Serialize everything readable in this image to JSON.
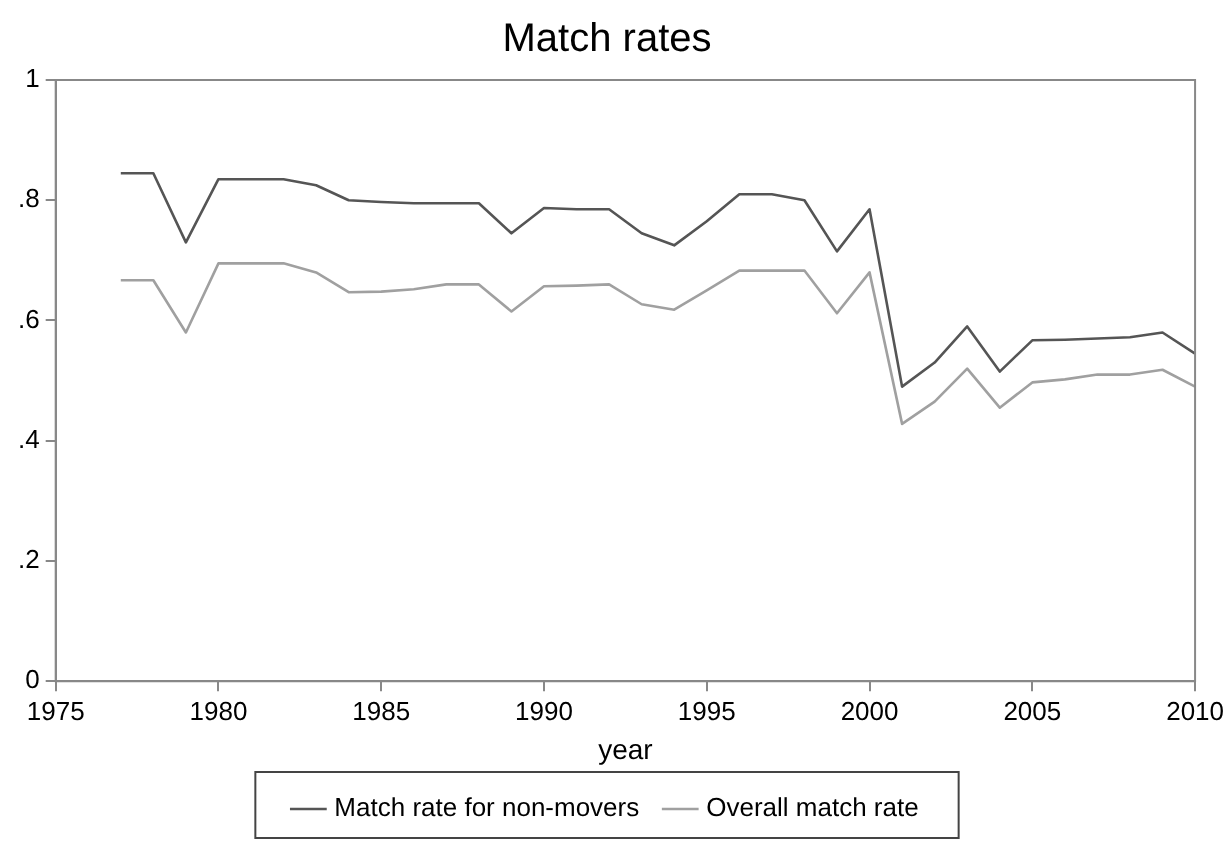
{
  "chart_data": {
    "type": "line",
    "title": "Match rates",
    "xlabel": "year",
    "x": [
      1977,
      1978,
      1979,
      1980,
      1981,
      1982,
      1983,
      1984,
      1985,
      1986,
      1987,
      1988,
      1989,
      1990,
      1991,
      1992,
      1993,
      1994,
      1995,
      1996,
      1997,
      1998,
      1999,
      2000,
      2001,
      2002,
      2003,
      2004,
      2005,
      2006,
      2007,
      2008,
      2009,
      2010
    ],
    "series": [
      {
        "name": "Match rate for non-movers",
        "color": "#555555",
        "values": [
          0.845,
          0.845,
          0.73,
          0.835,
          0.835,
          0.835,
          0.825,
          0.8,
          0.797,
          0.795,
          0.795,
          0.795,
          0.745,
          0.787,
          0.785,
          0.785,
          0.745,
          0.725,
          0.765,
          0.81,
          0.81,
          0.8,
          0.715,
          0.785,
          0.49,
          0.53,
          0.59,
          0.515,
          0.567,
          0.568,
          0.57,
          0.572,
          0.58,
          0.545
        ]
      },
      {
        "name": "Overall match rate",
        "color": "#a0a0a0",
        "values": [
          0.667,
          0.667,
          0.58,
          0.695,
          0.695,
          0.695,
          0.68,
          0.647,
          0.648,
          0.652,
          0.66,
          0.66,
          0.615,
          0.657,
          0.658,
          0.66,
          0.627,
          0.618,
          0.65,
          0.683,
          0.683,
          0.683,
          0.612,
          0.68,
          0.428,
          0.465,
          0.52,
          0.455,
          0.497,
          0.502,
          0.51,
          0.51,
          0.518,
          0.49
        ]
      }
    ],
    "xlim": [
      1975,
      2010
    ],
    "xticks": [
      1975,
      1980,
      1985,
      1990,
      1995,
      2000,
      2005,
      2010
    ],
    "ylim": [
      0,
      1
    ],
    "yticks": [
      {
        "value": 0,
        "label": "0"
      },
      {
        "value": 0.2,
        "label": ".2"
      },
      {
        "value": 0.4,
        "label": ".4"
      },
      {
        "value": 0.6,
        "label": ".6"
      },
      {
        "value": 0.8,
        "label": ".8"
      },
      {
        "value": 1,
        "label": "1"
      }
    ],
    "grid": false,
    "legend": "bottom",
    "marker": "none",
    "line_style": "solid"
  }
}
